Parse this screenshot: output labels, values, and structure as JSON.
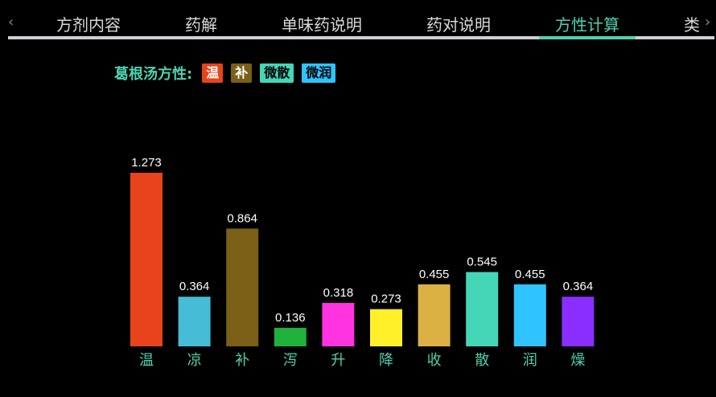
{
  "tabs": {
    "prev_icon": "chevron-left-icon",
    "next_icon": "chevron-right-icon",
    "prev_glyph": "‹",
    "next_glyph": "›",
    "items": [
      {
        "label": "方剂内容"
      },
      {
        "label": "药解"
      },
      {
        "label": "单味药说明"
      },
      {
        "label": "药对说明"
      },
      {
        "label": "方性计算",
        "active": true
      },
      {
        "label": "类"
      }
    ],
    "accent_color": "#4fd1b1"
  },
  "formula": {
    "label": "葛根汤方性:",
    "tags": [
      {
        "text": "温",
        "bg": "#e8431a",
        "fg": "#ffffff"
      },
      {
        "text": "补",
        "bg": "#7a5f17",
        "fg": "#ffffff"
      },
      {
        "text": "微散",
        "bg": "#45d6b8",
        "fg": "#000000"
      },
      {
        "text": "微润",
        "bg": "#2fc4ff",
        "fg": "#000000"
      }
    ]
  },
  "chart_data": {
    "type": "bar",
    "categories": [
      "温",
      "凉",
      "补",
      "泻",
      "升",
      "降",
      "收",
      "散",
      "润",
      "燥"
    ],
    "values": [
      1.273,
      0.364,
      0.864,
      0.136,
      0.318,
      0.273,
      0.455,
      0.545,
      0.455,
      0.364
    ],
    "value_labels": [
      "1.273",
      "0.364",
      "0.864",
      "0.136",
      "0.318",
      "0.273",
      "0.455",
      "0.545",
      "0.455",
      "0.364"
    ],
    "colors": [
      "#e8431a",
      "#46bcd6",
      "#7a5f17",
      "#1fb13c",
      "#ff33e0",
      "#fff02a",
      "#dbb144",
      "#45d6b8",
      "#2fc4ff",
      "#8a2eff"
    ],
    "title": "",
    "xlabel": "",
    "ylabel": "",
    "ylim": [
      0,
      1.273
    ],
    "grid": false,
    "legend": "none"
  }
}
